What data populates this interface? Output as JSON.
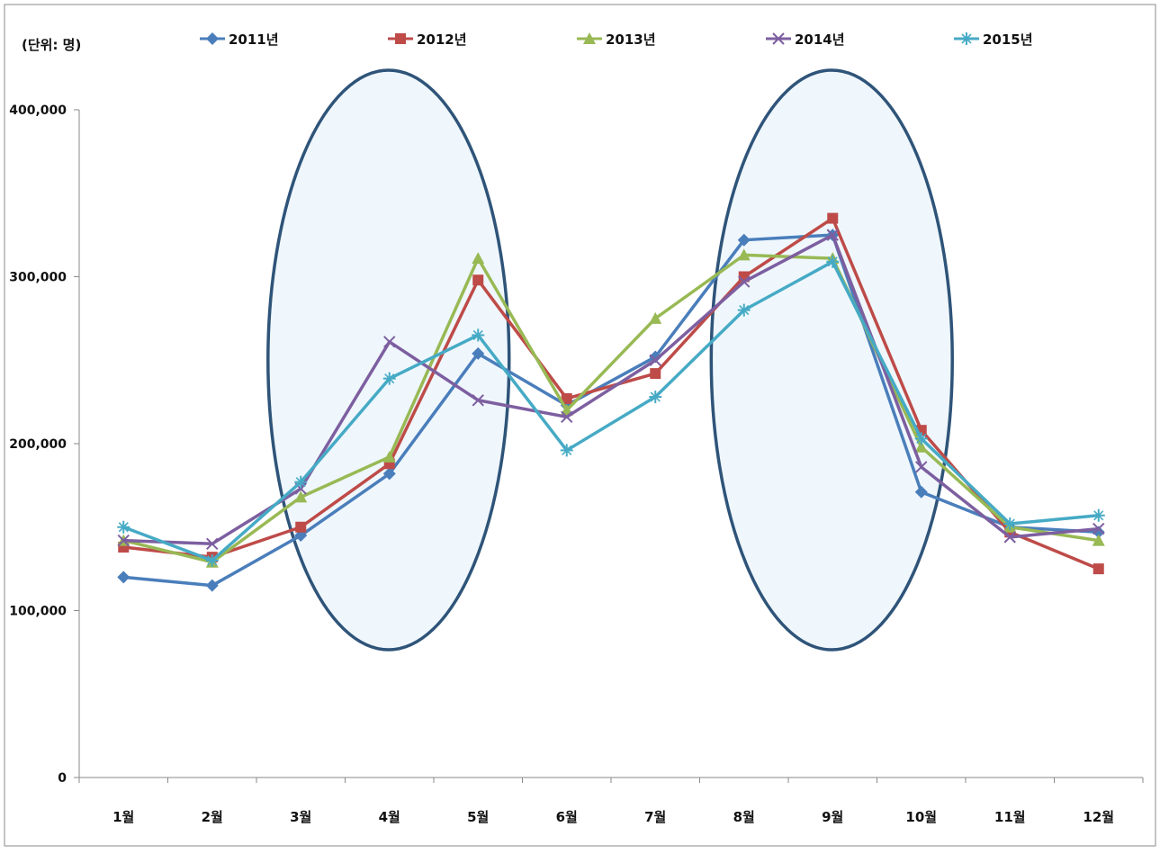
{
  "chart_data": {
    "type": "line",
    "unit_label": "(단위: 명)",
    "categories": [
      "1월",
      "2월",
      "3월",
      "4월",
      "5월",
      "6월",
      "7월",
      "8월",
      "9월",
      "10월",
      "11월",
      "12월"
    ],
    "y_ticks": [
      "0",
      "100,000",
      "200,000",
      "300,000",
      "400,000"
    ],
    "ylim": [
      0,
      400000
    ],
    "grid": false,
    "legend_position": "top",
    "highlight_periods": [
      [
        "3월",
        "5월"
      ],
      [
        "8월",
        "10월"
      ]
    ],
    "series": [
      {
        "name": "2011년",
        "color": "#4a7ebb",
        "marker": "diamond",
        "values": [
          120000,
          115000,
          145000,
          182000,
          254000,
          223000,
          252000,
          322000,
          325000,
          171000,
          150000,
          147000
        ]
      },
      {
        "name": "2012년",
        "color": "#be4b48",
        "marker": "square",
        "values": [
          138000,
          132000,
          150000,
          188000,
          298000,
          227000,
          242000,
          300000,
          335000,
          208000,
          147000,
          125000
        ]
      },
      {
        "name": "2013년",
        "color": "#98b954",
        "marker": "triangle",
        "values": [
          142000,
          129000,
          168000,
          192000,
          311000,
          220000,
          275000,
          313000,
          311000,
          198000,
          150000,
          142000
        ]
      },
      {
        "name": "2014년",
        "color": "#7d5fa0",
        "marker": "x",
        "values": [
          142000,
          140000,
          173000,
          261000,
          226000,
          216000,
          250000,
          297000,
          325000,
          186000,
          144000,
          149000
        ]
      },
      {
        "name": "2015년",
        "color": "#46aac5",
        "marker": "star",
        "values": [
          150000,
          130000,
          177000,
          239000,
          265000,
          196000,
          228000,
          280000,
          309000,
          203000,
          152000,
          157000
        ]
      }
    ]
  }
}
